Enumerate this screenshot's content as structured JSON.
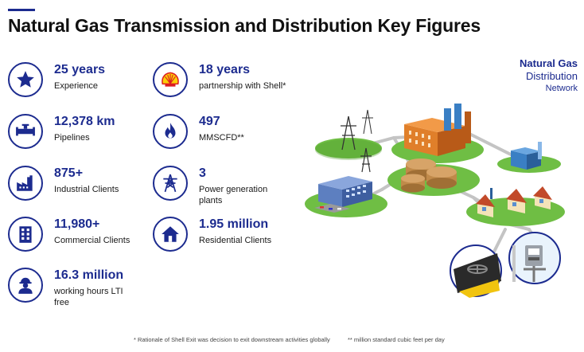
{
  "title": "Natural Gas Transmission and Distribution Key Figures",
  "stats": [
    {
      "value": "25 years",
      "label": "Experience",
      "icon": "star-icon"
    },
    {
      "value": "18 years",
      "label": "partnership with Shell*",
      "icon": "shell-logo-icon"
    },
    {
      "value": "12,378 km",
      "label": "Pipelines",
      "icon": "pipeline-icon"
    },
    {
      "value": "497",
      "label": "MMSCFD**",
      "icon": "flame-icon"
    },
    {
      "value": "875+",
      "label": "Industrial Clients",
      "icon": "factory-icon"
    },
    {
      "value": "3",
      "label_line1": "Power generation",
      "label_line2": "plants",
      "icon": "power-tower-icon"
    },
    {
      "value": "11,980+",
      "label": "Commercial Clients",
      "icon": "building-icon"
    },
    {
      "value": "1.95 million",
      "label": "Residential Clients",
      "icon": "house-icon"
    },
    {
      "value": "16.3 million",
      "label_line1": "working hours LTI",
      "label_line2": "free",
      "icon": "worker-icon"
    }
  ],
  "network": {
    "line1": "Natural Gas",
    "line2": "Distribution",
    "line3": "Network"
  },
  "footnotes": {
    "shell": "* Rationale of Shell Exit was decision to exit downstream activities globally",
    "mmscfd": "** million standard cubic feet per day"
  },
  "colors": {
    "accent": "#1c2b8f",
    "shell_red": "#dd1d21",
    "shell_yellow": "#fbce07"
  }
}
